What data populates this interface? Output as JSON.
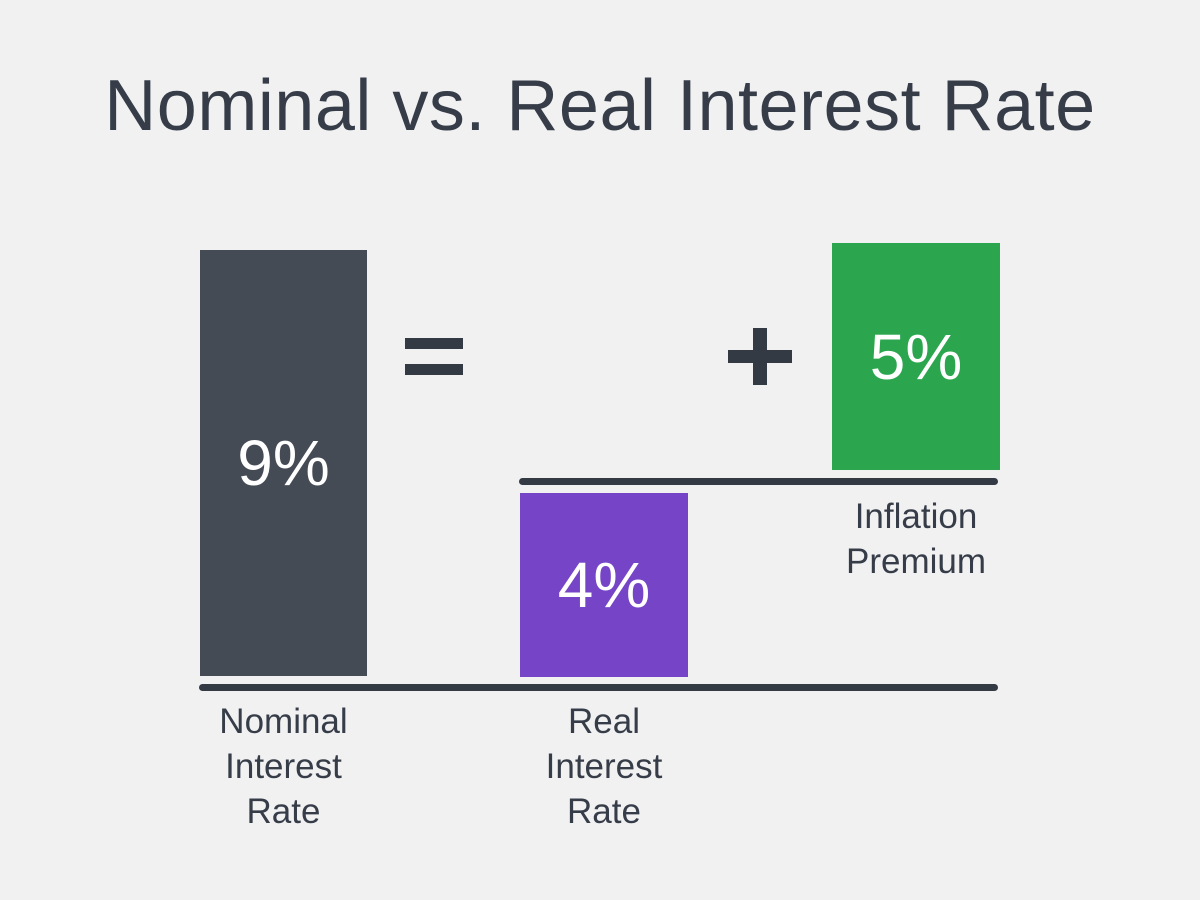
{
  "title": "Nominal vs. Real Interest Rate",
  "operators": {
    "equals": "=",
    "plus": "+"
  },
  "bars": {
    "nominal": {
      "value_label": "9%",
      "label": "Nominal\nInterest\nRate"
    },
    "real": {
      "value_label": "4%",
      "label": "Real\nInterest\nRate"
    },
    "inflation": {
      "value_label": "5%",
      "label": "Inflation\nPremium"
    }
  },
  "colors": {
    "background": "#f1f1f2",
    "nominal_bar": "#454b55",
    "real_bar": "#7644c6",
    "inflation_bar": "#2ba64f",
    "rules_and_operators": "#343a44",
    "text": "#363d48",
    "value_text": "#ffffff"
  },
  "chart_data": {
    "type": "bar",
    "title": "Nominal vs. Real Interest Rate",
    "categories": [
      "Nominal Interest Rate",
      "Real Interest Rate",
      "Inflation Premium"
    ],
    "values": [
      9,
      4,
      5
    ],
    "value_labels": [
      "9%",
      "4%",
      "5%"
    ],
    "units": "percent",
    "equation": "Nominal Interest Rate = Real Interest Rate + Inflation Premium",
    "bar_colors": [
      "#454b55",
      "#7644c6",
      "#2ba64f"
    ],
    "xlabel": "",
    "ylabel": "",
    "ylim": [
      0,
      9
    ],
    "grid": false,
    "legend": false,
    "notes": "Inflation Premium bar is stacked on top of a secondary baseline above the Real Interest Rate bar, illustrating 9% = 4% + 5%."
  }
}
